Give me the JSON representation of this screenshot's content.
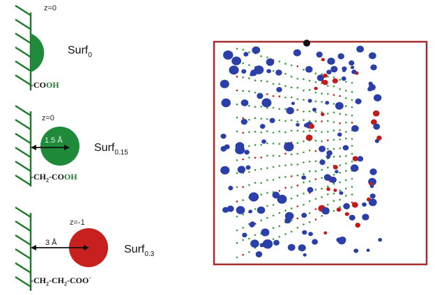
{
  "panels": [
    {
      "z_label": "z=0",
      "surf_base": "Surf",
      "surf_sub": "0",
      "group_parts": [
        {
          "t": "-CO"
        },
        {
          "t": "OH",
          "green": true
        }
      ]
    },
    {
      "z_label": "z=0",
      "surf_base": "Surf",
      "surf_sub": "0.15",
      "distance": "1.5 Å",
      "group_parts": [
        {
          "t": "-CH"
        },
        {
          "t": "2",
          "sub": true
        },
        {
          "t": "-CO"
        },
        {
          "t": "OH",
          "green": true
        }
      ]
    },
    {
      "z_label": "z=-1",
      "surf_base": "Surf",
      "surf_sub": "0.3",
      "distance": "3 Å",
      "group_parts": [
        {
          "t": "-CH"
        },
        {
          "t": "2",
          "sub": true
        },
        {
          "t": "-CH"
        },
        {
          "t": "2",
          "sub": true
        },
        {
          "t": "-COO"
        },
        {
          "t": "-",
          "sup": true
        }
      ]
    }
  ],
  "colors": {
    "surface_hatch": "#1f7a2a",
    "neutral_sphere": "#1f8a3a",
    "charged_sphere": "#c8201e",
    "box_border": "#a52a2a",
    "blue_ion": "#2b3fa8",
    "red_ion": "#c41a1a",
    "grid_dot": "#3a9a3a"
  }
}
